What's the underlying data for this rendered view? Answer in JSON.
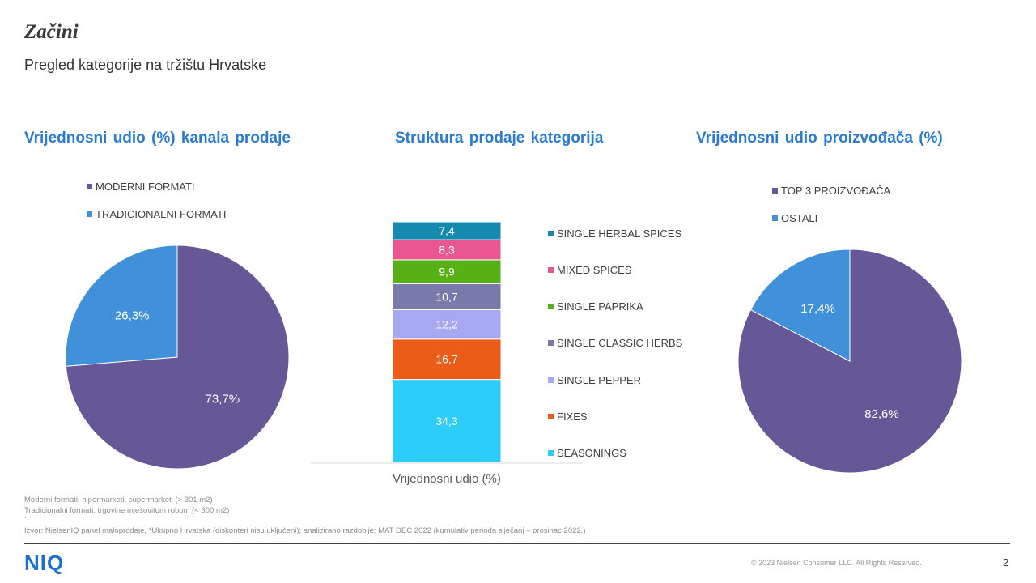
{
  "header": {
    "title": "Začini",
    "subtitle": "Pregled kategorije na tržištu Hrvatske"
  },
  "chart_data": [
    {
      "type": "pie",
      "title": "Vrijednosni  udio (%) kanala prodaje",
      "legend_position": "top",
      "series": [
        {
          "name": "MODERNI FORMATI",
          "value": 73.7,
          "label": "73,7%",
          "color": "#665796"
        },
        {
          "name": "TRADICIONALNI FORMATI",
          "value": 26.3,
          "label": "26,3%",
          "color": "#4190da"
        }
      ]
    },
    {
      "type": "bar",
      "stacked": true,
      "title": "Struktura prodaje kategorija",
      "categories": [
        "Vrijednosni udio (%)"
      ],
      "legend_position": "right",
      "series": [
        {
          "name": "SEASONINGS",
          "value": 34.3,
          "label": "34,3",
          "color": "#2ccdf8"
        },
        {
          "name": "FIXES",
          "value": 16.7,
          "label": "16,7",
          "color": "#ea5c17"
        },
        {
          "name": "SINGLE PEPPER",
          "value": 12.2,
          "label": "12,2",
          "color": "#a6a9f2"
        },
        {
          "name": "SINGLE CLASSIC HERBS",
          "value": 10.7,
          "label": "10,7",
          "color": "#787aa9"
        },
        {
          "name": "SINGLE PAPRIKA",
          "value": 9.9,
          "label": "9,9",
          "color": "#57b015"
        },
        {
          "name": "MIXED SPICES",
          "value": 8.3,
          "label": "8,3",
          "color": "#e9578e"
        },
        {
          "name": "SINGLE HERBAL SPICES",
          "value": 7.4,
          "label": "7,4",
          "color": "#1689ae"
        }
      ]
    },
    {
      "type": "pie",
      "title": "Vrijednosni  udio proizvođača (%)",
      "legend_position": "top",
      "series": [
        {
          "name": "TOP 3 PROIZVOĐAČA",
          "value": 82.6,
          "label": "82,6%",
          "color": "#665796"
        },
        {
          "name": "OSTALI",
          "value": 17.4,
          "label": "17,4%",
          "color": "#4190da"
        }
      ]
    }
  ],
  "footnotes": {
    "line1": "Moderni formati: hipermarketi,  supermarketi (> 301 m2)",
    "line2": "Tradicionalni  formati: trgovine mješovitom robom (< 300 m2)",
    "line3": "*",
    "source": "Izvor: NielsenIQ  panel maloprodaje,  *Ukupno  Hrvatska  (diskonteri nisu uključeni);  analizirano razdoblje: MAT DEC  2022  (kumulativ  perioda siječanj – prosinac 2022.)"
  },
  "footer": {
    "logo": "NIQ",
    "copyright": "© 2023  Nielsen Consumer LLC. All Rights Reserved.",
    "page_number": "2"
  }
}
